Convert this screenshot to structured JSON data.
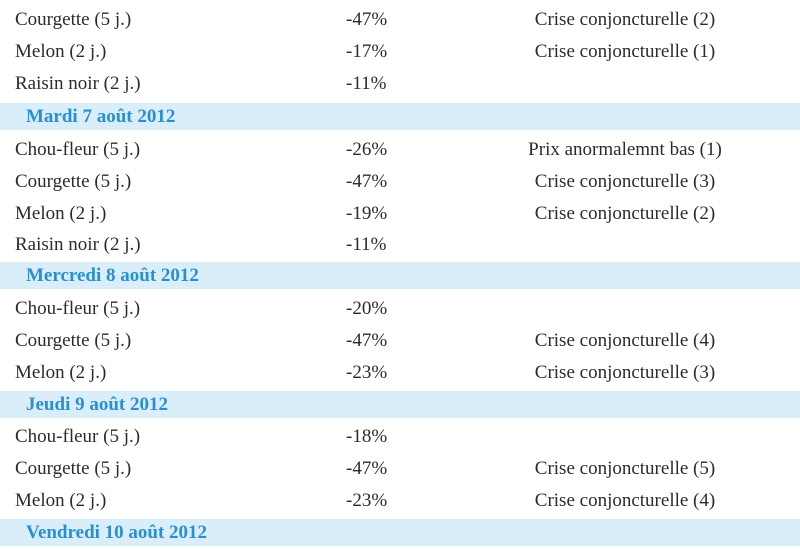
{
  "rows": [
    {
      "type": "item",
      "name": "Courgette (5 j.)",
      "pct": "-47%",
      "status": "Crise conjoncturelle (2)"
    },
    {
      "type": "item",
      "name": "Melon (2 j.)",
      "pct": "-17%",
      "status": "Crise conjoncturelle (1)"
    },
    {
      "type": "item",
      "name": "Raisin noir (2 j.)",
      "pct": "-11%",
      "status": ""
    },
    {
      "type": "date",
      "label": "Mardi 7 août 2012"
    },
    {
      "type": "item",
      "name": "Chou-fleur (5 j.)",
      "pct": "-26%",
      "status": "Prix anormalemnt bas (1)"
    },
    {
      "type": "item",
      "name": "Courgette (5 j.)",
      "pct": "-47%",
      "status": "Crise conjoncturelle (3)"
    },
    {
      "type": "item",
      "name": "Melon (2 j.)",
      "pct": "-19%",
      "status": "Crise conjoncturelle (2)"
    },
    {
      "type": "item",
      "name": "Raisin noir (2 j.)",
      "pct": "-11%",
      "status": ""
    },
    {
      "type": "date",
      "label": "Mercredi 8 août 2012"
    },
    {
      "type": "item",
      "name": "Chou-fleur (5 j.)",
      "pct": "-20%",
      "status": ""
    },
    {
      "type": "item",
      "name": "Courgette (5 j.)",
      "pct": "-47%",
      "status": "Crise conjoncturelle (4)"
    },
    {
      "type": "item",
      "name": "Melon (2 j.)",
      "pct": "-23%",
      "status": "Crise conjoncturelle (3)"
    },
    {
      "type": "date",
      "label": "Jeudi 9 août 2012"
    },
    {
      "type": "item",
      "name": "Chou-fleur (5 j.)",
      "pct": "-18%",
      "status": ""
    },
    {
      "type": "item",
      "name": "Courgette (5 j.)",
      "pct": "-47%",
      "status": "Crise conjoncturelle (5)"
    },
    {
      "type": "item",
      "name": "Melon (2 j.)",
      "pct": "-23%",
      "status": "Crise conjoncturelle (4)"
    },
    {
      "type": "date",
      "label": "Vendredi 10 août 2012"
    }
  ],
  "colors": {
    "date_band": "#d9eef8",
    "date_text": "#2a8fd0",
    "text": "#2b2b2b"
  }
}
